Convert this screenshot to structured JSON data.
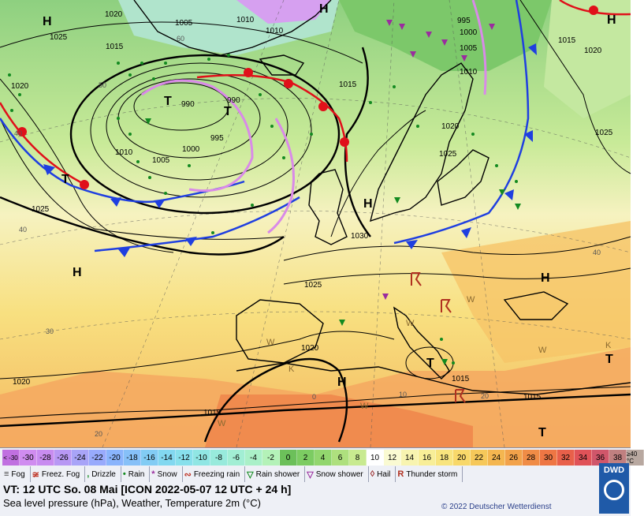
{
  "map": {
    "pressure_labels": [
      "1020",
      "1025",
      "1005",
      "1010",
      "1015",
      "1010",
      "1020",
      "995",
      "1000",
      "1005",
      "1010",
      "990",
      "990",
      "995",
      "1000",
      "1005",
      "1010",
      "1015",
      "1020",
      "1025",
      "1015",
      "1020",
      "1025",
      "1030",
      "1025",
      "1020",
      "1015",
      "1015",
      "1020",
      "1015",
      "1025"
    ],
    "temp_labels": [
      "60",
      "50",
      "40",
      "40",
      "30",
      "20",
      "0",
      "10",
      "20",
      "40"
    ],
    "centers": [
      "H",
      "H",
      "T",
      "T",
      "T",
      "H",
      "H",
      "H",
      "T",
      "T",
      "H",
      "T",
      "H"
    ],
    "weather_letters": [
      "W",
      "W",
      "W",
      "K",
      "W",
      "W",
      "K",
      "W"
    ],
    "colors": {
      "cold_front": "#1f3fe0",
      "warm_front": "#e0101a",
      "occlusion": "#d98ae8",
      "isobar": "#000000",
      "precip_green": "#138a20"
    }
  },
  "scale": {
    "cells": [
      {
        "label": "< -30",
        "color": "#c070e0"
      },
      {
        "label": "-30",
        "color": "#d08cf0"
      },
      {
        "label": "-28",
        "color": "#c88cf0"
      },
      {
        "label": "-26",
        "color": "#b898f4"
      },
      {
        "label": "-24",
        "color": "#a8a4f8"
      },
      {
        "label": "-22",
        "color": "#98aafc"
      },
      {
        "label": "-20",
        "color": "#8ab4fc"
      },
      {
        "label": "-18",
        "color": "#86c0f8"
      },
      {
        "label": "-16",
        "color": "#82ccf4"
      },
      {
        "label": "-14",
        "color": "#82d8f0"
      },
      {
        "label": "-12",
        "color": "#88e0ec"
      },
      {
        "label": "-10",
        "color": "#90e6e4"
      },
      {
        "label": "-8",
        "color": "#98eadc"
      },
      {
        "label": "-6",
        "color": "#a2eed4"
      },
      {
        "label": "-4",
        "color": "#aaf0c8"
      },
      {
        "label": "-2",
        "color": "#b4f2b8"
      },
      {
        "label": "0",
        "color": "#6cc05a"
      },
      {
        "label": "2",
        "color": "#7ccc62"
      },
      {
        "label": "4",
        "color": "#92d66e"
      },
      {
        "label": "6",
        "color": "#aee07e"
      },
      {
        "label": "8",
        "color": "#c8ea90"
      },
      {
        "label": "10",
        "color": "#ffffff"
      },
      {
        "label": "12",
        "color": "#fafad2"
      },
      {
        "label": "14",
        "color": "#f8f4b0"
      },
      {
        "label": "16",
        "color": "#f8ee98"
      },
      {
        "label": "18",
        "color": "#f8e47e"
      },
      {
        "label": "20",
        "color": "#f8d86a"
      },
      {
        "label": "22",
        "color": "#f6c85a"
      },
      {
        "label": "24",
        "color": "#f4b650"
      },
      {
        "label": "26",
        "color": "#f2a24a"
      },
      {
        "label": "28",
        "color": "#f08c46"
      },
      {
        "label": "30",
        "color": "#ee7644"
      },
      {
        "label": "32",
        "color": "#e8604a"
      },
      {
        "label": "34",
        "color": "#e05258"
      },
      {
        "label": "36",
        "color": "#d0566a"
      },
      {
        "label": "38",
        "color": "#c08080"
      },
      {
        "label": "≥40 °C",
        "color": "#b8a8a0"
      }
    ]
  },
  "legend": {
    "items": [
      {
        "icon": "fog-icon",
        "symbol": "≡",
        "label": "Fog",
        "color": "#444444"
      },
      {
        "icon": "freezing-fog-icon",
        "symbol": "≆",
        "label": "Freez. Fog",
        "color": "#c0392b"
      },
      {
        "icon": "drizzle-icon",
        "symbol": ",",
        "label": "Drizzle",
        "color": "#138a20"
      },
      {
        "icon": "rain-icon",
        "symbol": "•",
        "label": "Rain",
        "color": "#138a20"
      },
      {
        "icon": "snow-icon",
        "symbol": "*",
        "label": "Snow",
        "color": "#9a2c9e"
      },
      {
        "icon": "freezing-rain-icon",
        "symbol": "∾",
        "label": "Freezing rain",
        "color": "#c0392b"
      },
      {
        "icon": "rain-shower-icon",
        "symbol": "▽",
        "label": "Rain shower",
        "color": "#138a20"
      },
      {
        "icon": "snow-shower-icon",
        "symbol": "▽",
        "label": "Snow shower",
        "color": "#9a2c9e"
      },
      {
        "icon": "hail-icon",
        "symbol": "◊",
        "label": "Hail",
        "color": "#9a2c2c"
      },
      {
        "icon": "thunderstorm-icon",
        "symbol": "R",
        "label": "Thunder storm",
        "color": "#b03020"
      }
    ]
  },
  "info": {
    "valid_time": "VT: 12 UTC So.  08 Mai [ICON 2022-05-07  12 UTC + 24 h]",
    "description": "Sea level pressure (hPa), Weather, Temperature 2m (°C)",
    "copyright": "© 2022 Deutscher Wetterdienst",
    "logo": "DWD"
  }
}
